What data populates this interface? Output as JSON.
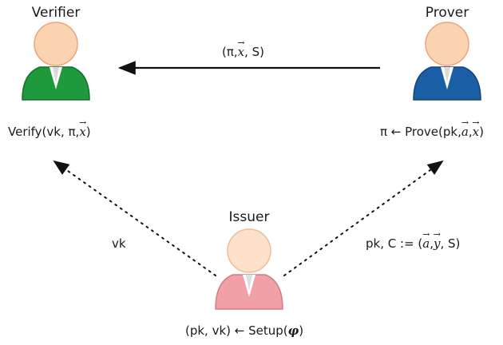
{
  "roles": {
    "verifier": "Verifier",
    "prover": "Prover",
    "issuer": "Issuer"
  },
  "messages": {
    "proof_msg_open": "(π,",
    "proof_msg_vec": "x",
    "proof_msg_close": ", S)",
    "vk_edge": "vk",
    "pk_edge_prefix": "pk, C := (",
    "pk_edge_vec1": "a",
    "pk_edge_sep": ",",
    "pk_edge_vec2": "y",
    "pk_edge_suffix": ", S)"
  },
  "equations": {
    "verify_prefix": "Verify(vk, π,",
    "verify_vec": "x",
    "verify_suffix": ")",
    "prove_prefix": "π ← Prove(pk,",
    "prove_vec1": "a",
    "prove_sep": ",",
    "prove_vec2": "x",
    "prove_suffix": ")",
    "setup_prefix": "(pk, vk) ← Setup(",
    "setup_phi": "φ",
    "setup_suffix": ")"
  },
  "colors": {
    "verifier_suit": "#1e9a3c",
    "prover_suit": "#1a5fa6",
    "issuer_suit": "#f0a0a6",
    "skin": "#fbd3b0"
  }
}
